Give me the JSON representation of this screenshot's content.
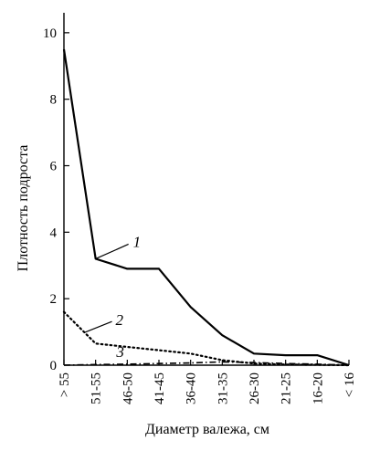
{
  "chart_data": {
    "type": "line",
    "title": "",
    "xlabel": "Диаметр валежа, см",
    "ylabel": "Плотность подроста",
    "categories": [
      "> 55",
      "51-55",
      "46-50",
      "41-45",
      "36-40",
      "31-35",
      "26-30",
      "21-25",
      "16-20",
      "< 16"
    ],
    "ylim": [
      0,
      10.6
    ],
    "yticks": [
      "0",
      "2",
      "4",
      "6",
      "8",
      "10"
    ],
    "grid": false,
    "legend": "none",
    "series": [
      {
        "name": "1",
        "style": "solid",
        "color": "#000000",
        "values": [
          9.5,
          3.2,
          2.9,
          2.9,
          1.75,
          0.9,
          0.35,
          0.3,
          0.3,
          0.0
        ]
      },
      {
        "name": "2",
        "style": "dotted",
        "color": "#000000",
        "values": [
          1.6,
          0.65,
          0.55,
          0.45,
          0.35,
          0.15,
          0.05,
          0.02,
          0.01,
          0.0
        ]
      },
      {
        "name": "3",
        "style": "dashdot",
        "color": "#000000",
        "values": [
          0.0,
          0.02,
          0.03,
          0.05,
          0.07,
          0.1,
          0.08,
          0.05,
          0.03,
          0.0
        ]
      }
    ]
  }
}
